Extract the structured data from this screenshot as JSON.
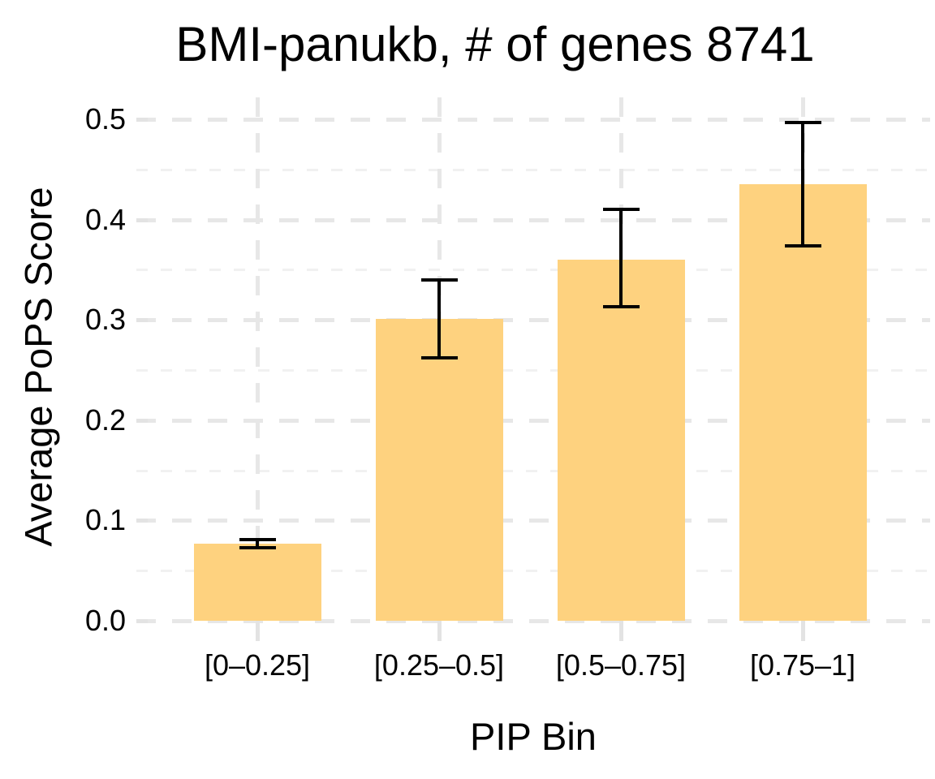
{
  "chart_data": {
    "type": "bar",
    "title": "BMI-panukb, # of genes 8741",
    "xlabel": "PIP Bin",
    "ylabel": "Average PoPS Score",
    "categories": [
      "[0–0.25]",
      "[0.25–0.5]",
      "[0.5–0.75]",
      "[0.75–1]"
    ],
    "values": [
      0.077,
      0.301,
      0.36,
      0.435
    ],
    "error_low": [
      0.073,
      0.262,
      0.313,
      0.374
    ],
    "error_high": [
      0.081,
      0.34,
      0.41,
      0.497
    ],
    "ylim": [
      0,
      0.52
    ],
    "yticks": [
      0.0,
      0.1,
      0.2,
      0.3,
      0.4,
      0.5
    ],
    "ytick_labels": [
      "0.0",
      "0.1",
      "0.2",
      "0.3",
      "0.4",
      "0.5"
    ],
    "yticks_minor": [
      0.05,
      0.15,
      0.25,
      0.35,
      0.45
    ],
    "grid": true,
    "legend": false,
    "colors": {
      "bar_fill": "#FED27F",
      "error_bar": "#000000",
      "grid_major": "#E7E7E7",
      "grid_minor": "#F1F1F1",
      "axis_tick": "#E3E3E3",
      "background": "#FFFFFF",
      "text": "#000000"
    }
  }
}
